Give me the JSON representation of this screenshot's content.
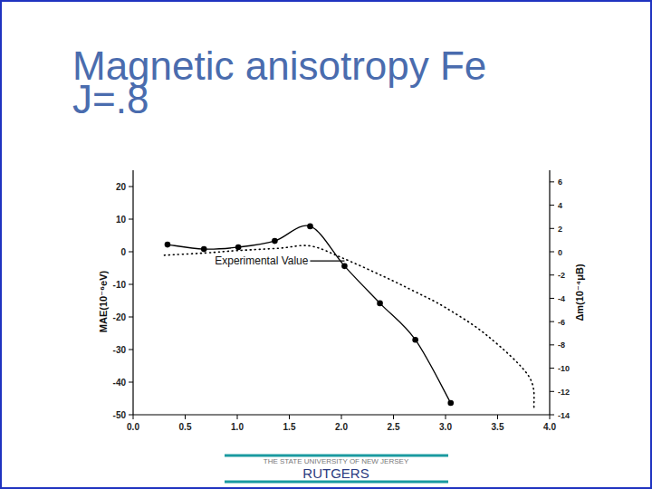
{
  "chart_data": {
    "type": "line",
    "title": "Magnetic anisotropy Fe",
    "subtitle": "J=.8",
    "y_label": "MAE(10⁻⁶eV)",
    "y2_label": "Δm(10⁻⁴μB)",
    "xlim": [
      0,
      4
    ],
    "xticks": [
      {
        "value": 0,
        "label": "0.0"
      },
      0.5,
      {
        "value": 1,
        "label": "1.0"
      },
      1.5,
      {
        "value": 2,
        "label": "2.0"
      },
      2.5,
      {
        "value": 3,
        "label": "3.0"
      },
      3.5,
      {
        "value": 4,
        "label": "4.0"
      }
    ],
    "ylim": [
      -50,
      25
    ],
    "yticks": [
      20,
      10,
      0,
      -10,
      -20,
      -30,
      -40,
      -50
    ],
    "y2lim": [
      -14,
      7
    ],
    "y2ticks": [
      6,
      4,
      2,
      0,
      -2,
      -4,
      -6,
      -8,
      -10,
      -12,
      -14
    ],
    "grid": false,
    "series": [
      {
        "type": "line",
        "color": "#000000",
        "marker": "circle",
        "line_style": "solid",
        "x": [
          0.33,
          0.68,
          1.01,
          1.36,
          1.7,
          2.03,
          2.37,
          2.71,
          3.05
        ],
        "values": [
          2.2,
          0.8,
          1.4,
          3.3,
          7.8,
          -4.4,
          -15.8,
          -27,
          -46.4
        ]
      },
      {
        "type": "line",
        "color": "#000000",
        "marker": "none",
        "line_style": "dotted",
        "axis": "y2",
        "x": [
          0.3,
          0.7,
          1.0,
          1.4,
          1.7,
          2.0,
          2.4,
          2.7,
          3.0,
          3.4,
          3.8,
          3.85
        ],
        "values": [
          -0.3,
          -0.1,
          0.1,
          0.3,
          0.5,
          -0.5,
          -2.1,
          -3.4,
          -4.8,
          -7.2,
          -10.7,
          -13.4
        ]
      }
    ],
    "annotations": [
      {
        "text": "Experimental Value",
        "x": 2.03,
        "y": -2.8
      }
    ]
  },
  "footer": {
    "university": "THE STATE UNIVERSITY OF NEW JERSEY",
    "name": "RUTGERS"
  }
}
